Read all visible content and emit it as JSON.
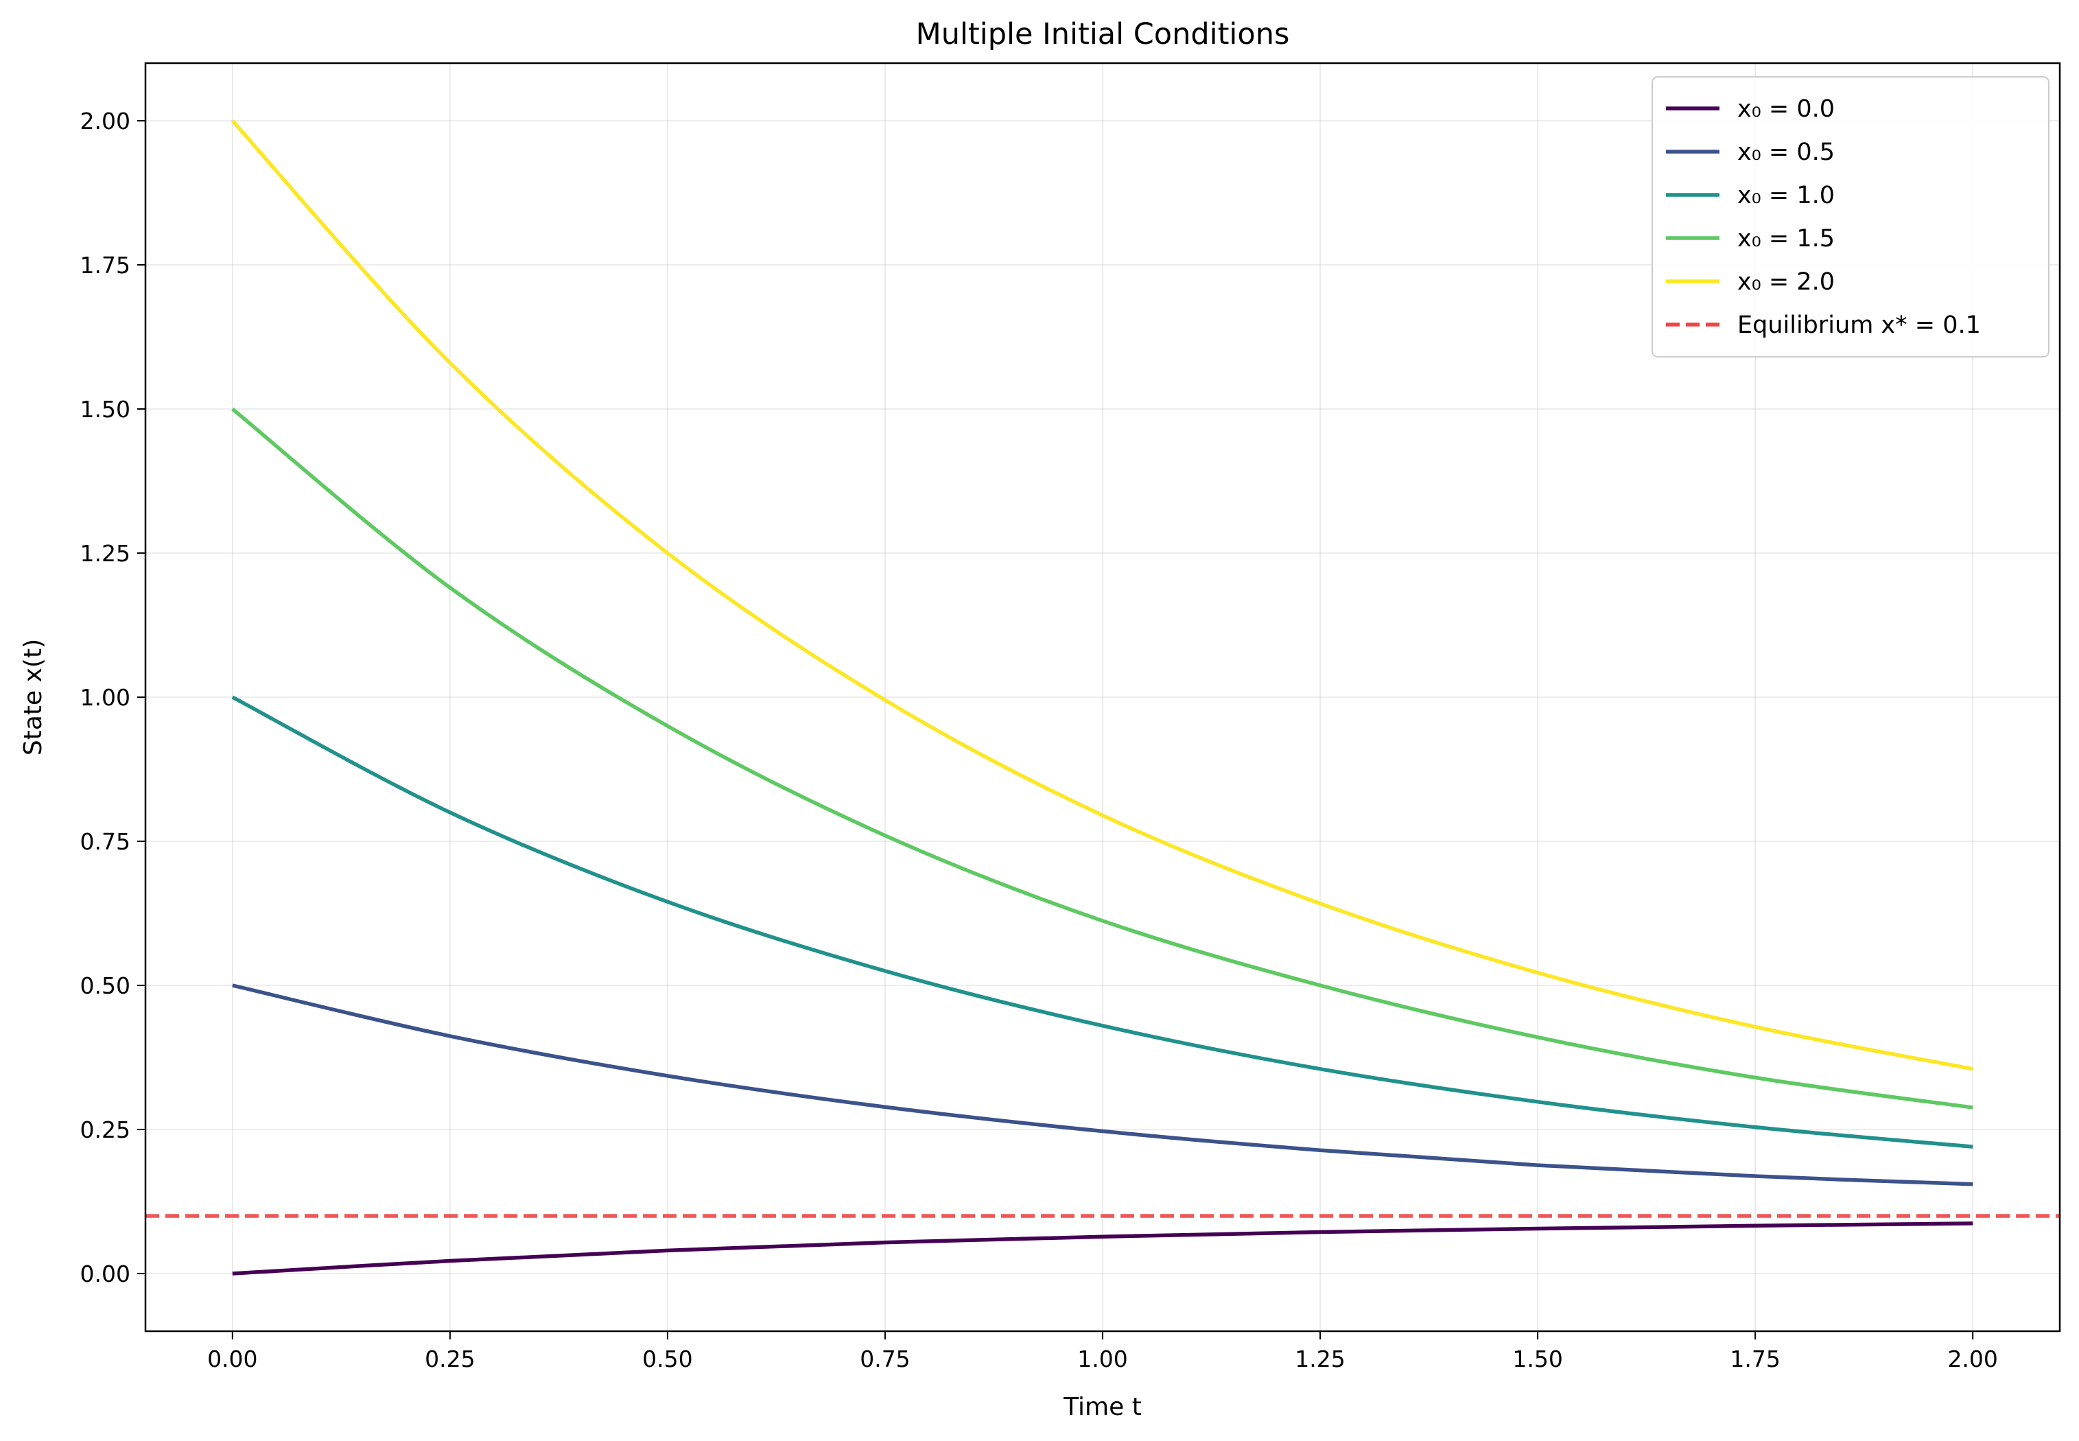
{
  "chart_data": {
    "type": "line",
    "title": "Multiple Initial Conditions",
    "xlabel": "Time t",
    "ylabel": "State x(t)",
    "xlim": [
      -0.1,
      2.1
    ],
    "ylim": [
      -0.1,
      2.1
    ],
    "x_ticks": [
      0.0,
      0.25,
      0.5,
      0.75,
      1.0,
      1.25,
      1.5,
      1.75,
      2.0
    ],
    "x_tick_labels": [
      "0.00",
      "0.25",
      "0.50",
      "0.75",
      "1.00",
      "1.25",
      "1.50",
      "1.75",
      "2.00"
    ],
    "y_ticks": [
      0.0,
      0.25,
      0.5,
      0.75,
      1.0,
      1.25,
      1.5,
      1.75,
      2.0
    ],
    "y_tick_labels": [
      "0.00",
      "0.25",
      "0.50",
      "0.75",
      "1.00",
      "1.25",
      "1.50",
      "1.75",
      "2.00"
    ],
    "grid": true,
    "legend_position": "top-right",
    "x": [
      0.0,
      0.25,
      0.5,
      0.75,
      1.0,
      1.25,
      1.5,
      1.75,
      2.0
    ],
    "series": [
      {
        "name": "x₀ = 0.0",
        "color": "#440154",
        "values": [
          0.0,
          0.022,
          0.04,
          0.054,
          0.064,
          0.072,
          0.078,
          0.083,
          0.087
        ]
      },
      {
        "name": "x₀ = 0.5",
        "color": "#3b528b",
        "values": [
          0.5,
          0.412,
          0.343,
          0.289,
          0.247,
          0.214,
          0.188,
          0.169,
          0.155
        ]
      },
      {
        "name": "x₀ = 1.0",
        "color": "#21918c",
        "values": [
          1.0,
          0.8,
          0.645,
          0.525,
          0.43,
          0.355,
          0.298,
          0.254,
          0.22
        ]
      },
      {
        "name": "x₀ = 1.5",
        "color": "#5ec962",
        "values": [
          1.5,
          1.19,
          0.95,
          0.76,
          0.612,
          0.5,
          0.41,
          0.34,
          0.288
        ]
      },
      {
        "name": "x₀ = 2.0",
        "color": "#fde725",
        "values": [
          2.0,
          1.58,
          1.25,
          0.995,
          0.795,
          0.642,
          0.522,
          0.428,
          0.355
        ]
      }
    ],
    "reference_line": {
      "name": "Equilibrium x* = 0.1",
      "y": 0.1,
      "color": "#ef4444",
      "style": "dashed"
    }
  }
}
